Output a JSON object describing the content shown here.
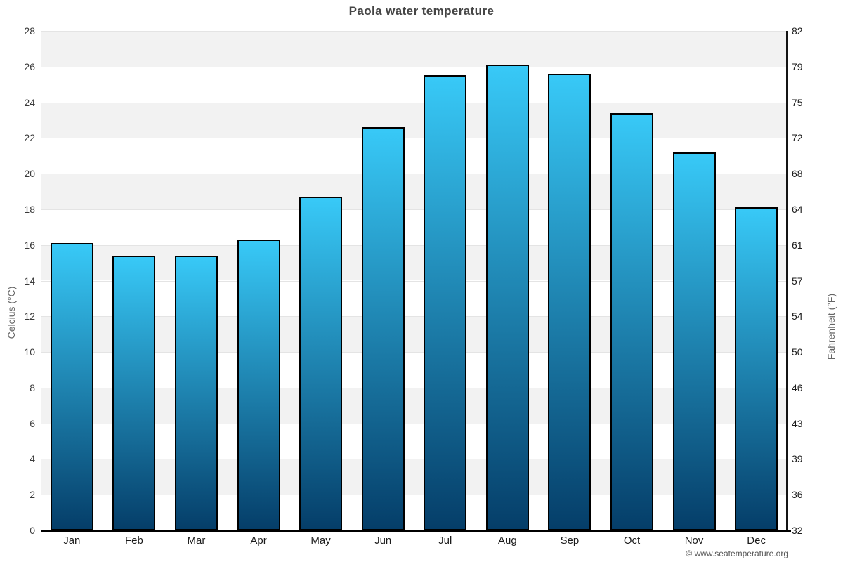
{
  "title": "Paola water temperature",
  "footer": "© www.seatemperature.org",
  "chart_data": {
    "type": "bar",
    "title": "Paola water temperature",
    "categories": [
      "Jan",
      "Feb",
      "Mar",
      "Apr",
      "May",
      "Jun",
      "Jul",
      "Aug",
      "Sep",
      "Oct",
      "Nov",
      "Dec"
    ],
    "values": [
      16.1,
      15.4,
      15.4,
      16.3,
      18.7,
      22.6,
      25.5,
      26.1,
      25.6,
      23.4,
      21.2,
      18.1
    ],
    "ylabel": "Celcius (°C)",
    "ylabel_right": "Fahrenheit (°F)",
    "xlabel": "",
    "ylim": [
      0,
      28
    ],
    "ytick_step": 2,
    "yticks_left": [
      0,
      2,
      4,
      6,
      8,
      10,
      12,
      14,
      16,
      18,
      20,
      22,
      24,
      26,
      28
    ],
    "yticks_right_labels": [
      "32",
      "36",
      "39",
      "43",
      "46",
      "50",
      "54",
      "57",
      "61",
      "64",
      "68",
      "72",
      "75",
      "79",
      "82"
    ],
    "grid": true,
    "legend": "none",
    "colors": {
      "bar_gradient_top": "#38c9f7",
      "bar_gradient_bottom": "#053e69",
      "bar_border": "#000000",
      "band_alternate": "#f2f2f2",
      "gridline": "#e4e4e4",
      "title_text": "#454545",
      "axis_title_text": "#666666",
      "footer_text": "#555555"
    }
  }
}
